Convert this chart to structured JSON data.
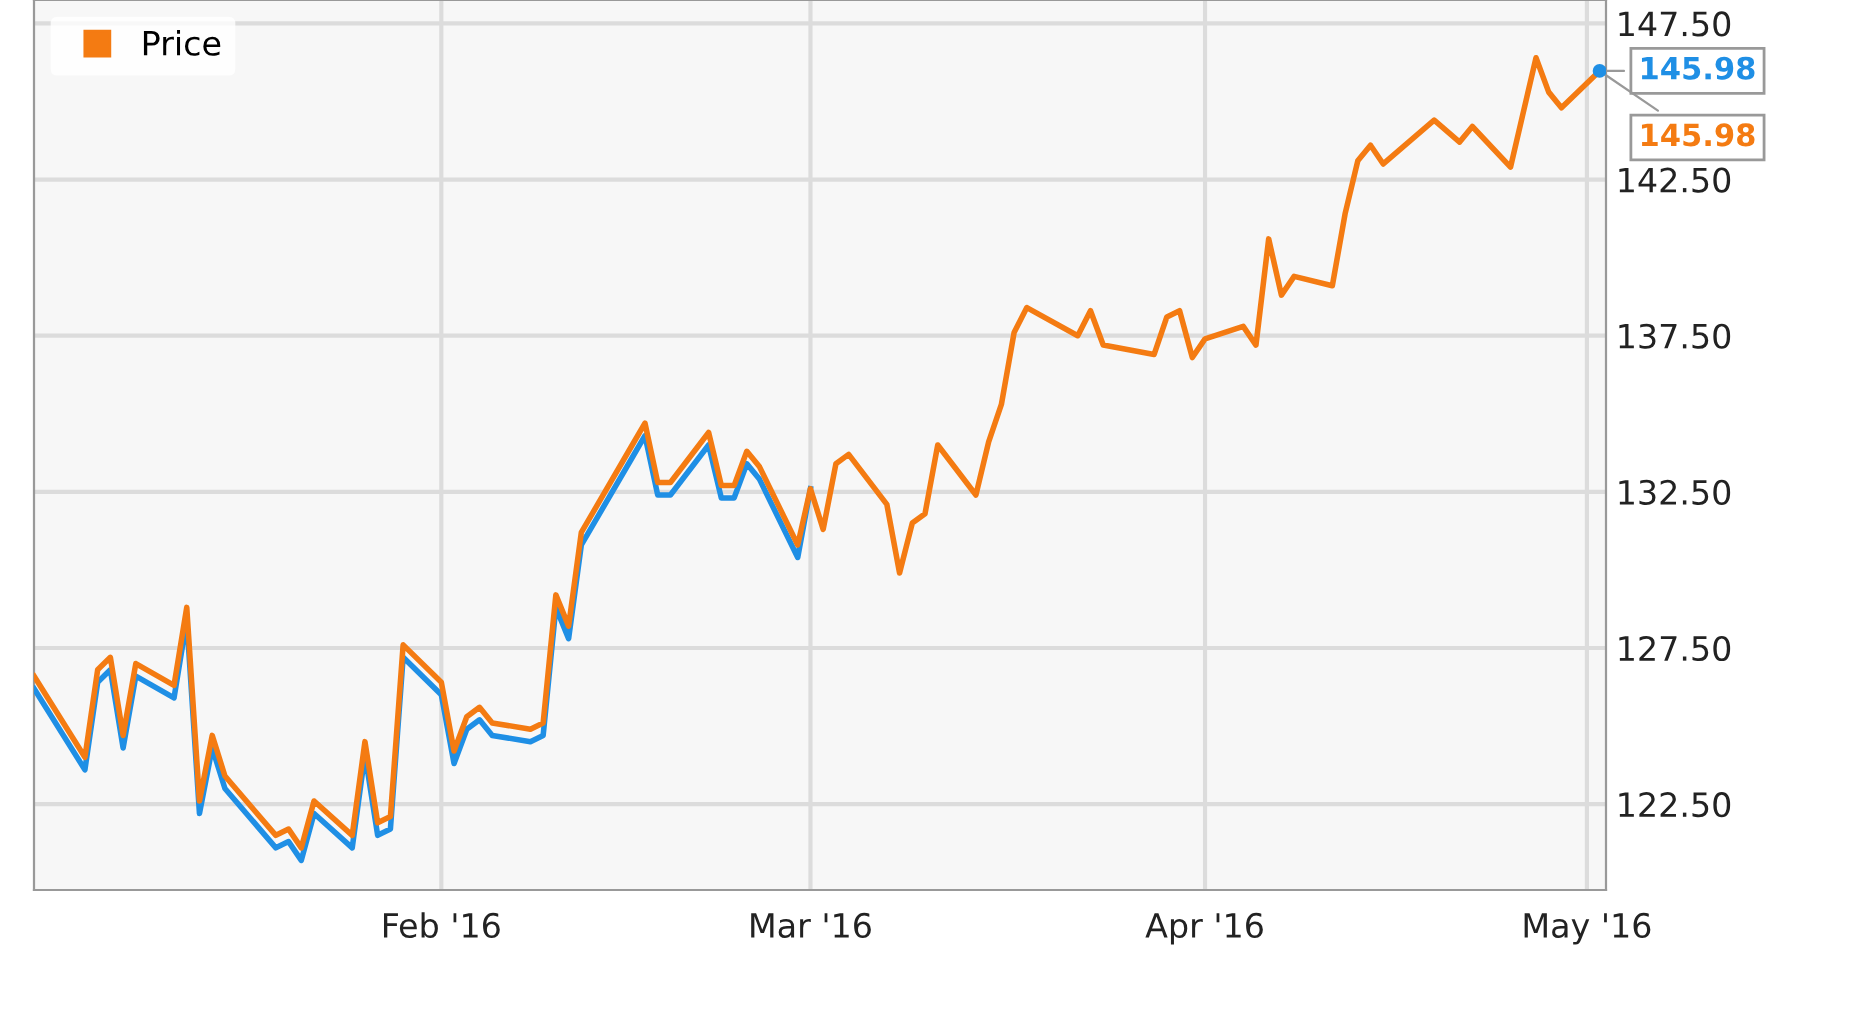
{
  "chart_data": {
    "type": "line",
    "x": [
      "2015-12-31",
      "2016-01-04",
      "2016-01-05",
      "2016-01-06",
      "2016-01-07",
      "2016-01-08",
      "2016-01-11",
      "2016-01-12",
      "2016-01-13",
      "2016-01-14",
      "2016-01-15",
      "2016-01-19",
      "2016-01-20",
      "2016-01-21",
      "2016-01-22",
      "2016-01-25",
      "2016-01-26",
      "2016-01-27",
      "2016-01-28",
      "2016-01-29",
      "2016-02-01",
      "2016-02-02",
      "2016-02-03",
      "2016-02-04",
      "2016-02-05",
      "2016-02-08",
      "2016-02-09",
      "2016-02-10",
      "2016-02-11",
      "2016-02-12",
      "2016-02-16",
      "2016-02-17",
      "2016-02-18",
      "2016-02-19",
      "2016-02-22",
      "2016-02-23",
      "2016-02-24",
      "2016-02-25",
      "2016-02-26",
      "2016-02-29",
      "2016-03-01",
      "2016-03-02",
      "2016-03-03",
      "2016-03-04",
      "2016-03-07",
      "2016-03-08",
      "2016-03-09",
      "2016-03-10",
      "2016-03-11",
      "2016-03-14",
      "2016-03-15",
      "2016-03-16",
      "2016-03-17",
      "2016-03-18",
      "2016-03-22",
      "2016-03-23",
      "2016-03-24",
      "2016-03-28",
      "2016-03-29",
      "2016-03-30",
      "2016-03-31",
      "2016-04-01",
      "2016-04-04",
      "2016-04-05",
      "2016-04-06",
      "2016-04-07",
      "2016-04-08",
      "2016-04-11",
      "2016-04-12",
      "2016-04-13",
      "2016-04-14",
      "2016-04-15",
      "2016-04-19",
      "2016-04-21",
      "2016-04-22",
      "2016-04-25",
      "2016-04-27",
      "2016-04-28",
      "2016-04-29",
      "2016-05-02"
    ],
    "series": [
      {
        "color": "#1f8fe5",
        "values": [
          126.2,
          123.6,
          126.4,
          126.8,
          124.3,
          126.6,
          125.9,
          128.4,
          122.2,
          124.3,
          123.0,
          121.1,
          121.3,
          120.7,
          122.2,
          121.1,
          124.1,
          121.5,
          121.7,
          127.2,
          126.0,
          123.8,
          124.9,
          125.2,
          124.7,
          124.5,
          124.7,
          128.8,
          127.8,
          130.8,
          133.6,
          134.3,
          132.4,
          132.4,
          134.0,
          132.3,
          132.3,
          133.4,
          132.9,
          130.4,
          132.6,
          null,
          null,
          null,
          null,
          null,
          null,
          null,
          null,
          null,
          null,
          null,
          null,
          null,
          null,
          null,
          null,
          null,
          null,
          null,
          null,
          null,
          null,
          null,
          null,
          null,
          null,
          null,
          null,
          null,
          null,
          null,
          null,
          null,
          null,
          null,
          null,
          null,
          null,
          145.98
        ],
        "value_labels": [
          null,
          null,
          null,
          null,
          null,
          null,
          null,
          null,
          null,
          null,
          null,
          null,
          null,
          null,
          null,
          null,
          null,
          null,
          null,
          null,
          null,
          null,
          null,
          null,
          null,
          null,
          null,
          null,
          null,
          null,
          null,
          null,
          null,
          null,
          null,
          null,
          null,
          null,
          null,
          null,
          null,
          null,
          null,
          null,
          null,
          null,
          null,
          null,
          null,
          null,
          null,
          null,
          null,
          null,
          null,
          null,
          null,
          null,
          null,
          null,
          null,
          null,
          null,
          null,
          null,
          null,
          null,
          null,
          null,
          null,
          null,
          null,
          null,
          null,
          null,
          null,
          null,
          null,
          null,
          "145.98"
        ]
      },
      {
        "name": "Price",
        "color": "#f47b12",
        "values": [
          126.6,
          124.0,
          126.8,
          127.2,
          124.7,
          127.0,
          126.3,
          128.8,
          122.6,
          124.7,
          123.4,
          121.5,
          121.7,
          121.1,
          122.6,
          121.5,
          124.5,
          121.9,
          122.1,
          127.6,
          126.4,
          124.2,
          125.3,
          125.6,
          125.1,
          124.9,
          125.1,
          129.2,
          128.2,
          131.2,
          134.0,
          134.7,
          132.8,
          132.8,
          134.4,
          132.7,
          132.7,
          133.8,
          133.3,
          130.8,
          132.6,
          131.3,
          133.4,
          133.7,
          132.1,
          129.9,
          131.5,
          131.8,
          134.0,
          132.4,
          134.1,
          135.3,
          137.6,
          138.4,
          137.5,
          138.3,
          137.2,
          136.9,
          138.1,
          138.3,
          136.8,
          137.4,
          137.8,
          137.2,
          140.6,
          138.8,
          139.4,
          139.1,
          141.4,
          143.1,
          143.6,
          143.0,
          144.4,
          143.7,
          144.2,
          142.9,
          146.4,
          145.3,
          144.8,
          145.98
        ],
        "value_labels": [
          null,
          null,
          null,
          null,
          null,
          null,
          null,
          null,
          null,
          null,
          null,
          null,
          null,
          null,
          null,
          null,
          null,
          null,
          null,
          null,
          null,
          null,
          null,
          null,
          null,
          null,
          null,
          null,
          null,
          null,
          null,
          null,
          null,
          null,
          null,
          null,
          null,
          null,
          null,
          null,
          null,
          null,
          null,
          null,
          null,
          null,
          null,
          null,
          null,
          null,
          null,
          null,
          null,
          null,
          null,
          null,
          null,
          null,
          null,
          null,
          null,
          null,
          null,
          null,
          null,
          null,
          null,
          null,
          null,
          null,
          null,
          null,
          null,
          null,
          null,
          null,
          null,
          null,
          null,
          "145.98"
        ]
      }
    ],
    "xlim": [
      "2015-12-31",
      "2016-05-02T12:00"
    ],
    "xticks": [
      {
        "value": "2016-02-01",
        "label": "Feb '16"
      },
      {
        "value": "2016-03-01",
        "label": "Mar '16"
      },
      {
        "value": "2016-04-01",
        "label": "Apr '16"
      },
      {
        "value": "2016-05-01",
        "label": "May '16"
      }
    ],
    "ylim": [
      119.75,
      148.25
    ],
    "yticks": [
      {
        "value": 122.5,
        "label": "122.50"
      },
      {
        "value": 127.5,
        "label": "127.50"
      },
      {
        "value": 132.5,
        "label": "132.50"
      },
      {
        "value": 137.5,
        "label": "137.50"
      },
      {
        "value": 142.5,
        "label": "142.50"
      },
      {
        "value": 147.5,
        "label": "147.50"
      }
    ],
    "grid": true,
    "legend": "top left",
    "marker": "none",
    "line_style": "solid"
  }
}
